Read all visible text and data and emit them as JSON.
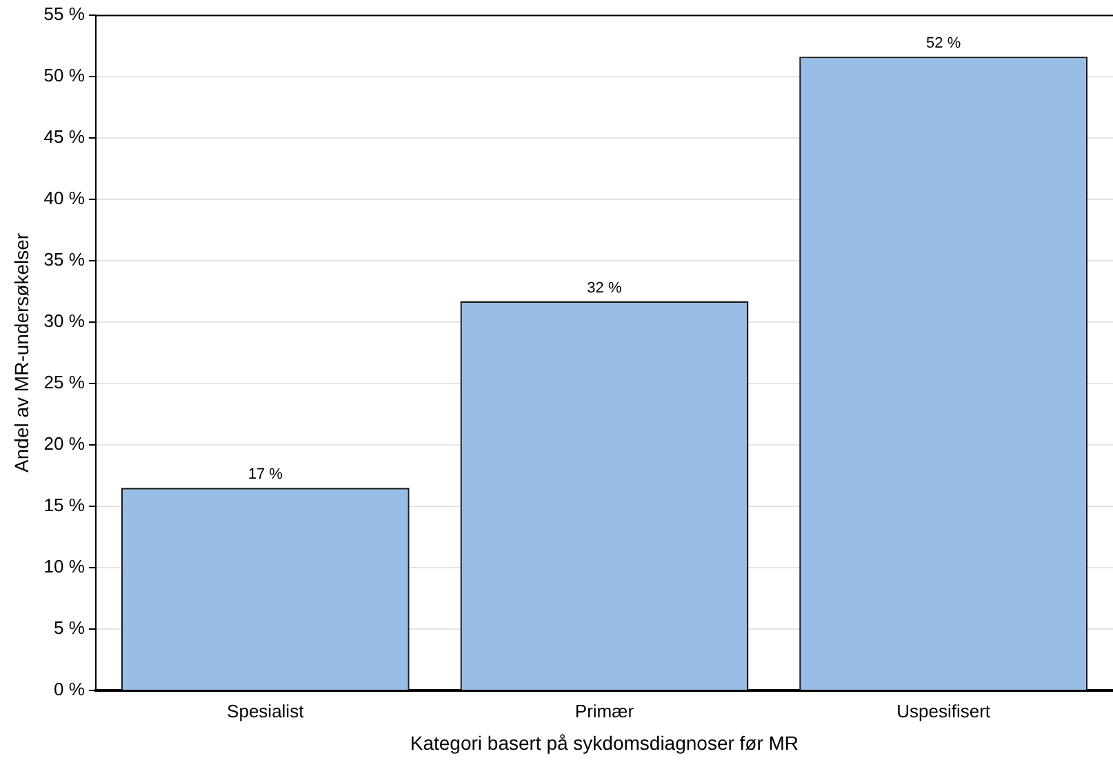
{
  "chart_data": {
    "type": "bar",
    "xlabel": "Kategori basert på sykdomsdiagnoser før MR",
    "ylabel": "Andel av MR-undersøkelser",
    "categories": [
      "Spesialist",
      "Primær",
      "Uspesifisert"
    ],
    "values": [
      16.5,
      31.7,
      51.6
    ],
    "color": "#98bde6",
    "value_labels": [
      "17 %",
      "32 %",
      "52 %"
    ],
    "ylim": [
      0,
      55
    ],
    "yticks": [
      {
        "value": 0,
        "label": "0 %"
      },
      {
        "value": 5,
        "label": "5 %"
      },
      {
        "value": 10,
        "label": "10 %"
      },
      {
        "value": 15,
        "label": "15 %"
      },
      {
        "value": 20,
        "label": "20 %"
      },
      {
        "value": 25,
        "label": "25 %"
      },
      {
        "value": 30,
        "label": "30 %"
      },
      {
        "value": 35,
        "label": "35 %"
      },
      {
        "value": 40,
        "label": "40 %"
      },
      {
        "value": 45,
        "label": "45 %"
      },
      {
        "value": 50,
        "label": "50 %"
      },
      {
        "value": 55,
        "label": "55 %"
      }
    ],
    "grid": "y"
  }
}
